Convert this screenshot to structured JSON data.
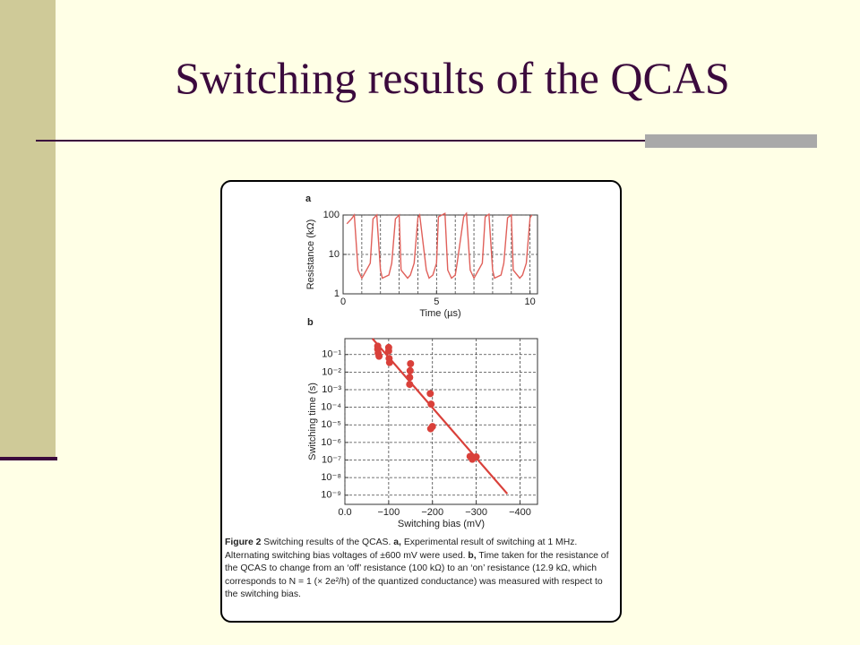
{
  "slide": {
    "title": "Switching results of the QCAS",
    "figure": {
      "panel_a": {
        "label": "a",
        "type": "line",
        "xlabel": "Time (µs)",
        "ylabel": "Resistance (kΩ)",
        "xlim": [
          0,
          10.4
        ],
        "xticks": [
          0,
          5,
          10
        ],
        "xminorticks": [
          1,
          2,
          3,
          4,
          5,
          6,
          7,
          8,
          9,
          10
        ],
        "ylim": [
          1,
          100
        ],
        "yticks": [
          1,
          10,
          100
        ],
        "ygrid": [
          10,
          100
        ],
        "yscale": "log",
        "color": "#E0605A",
        "x": [
          0.2,
          0.45,
          0.6,
          0.8,
          1.0,
          1.1,
          1.45,
          1.6,
          1.8,
          2.0,
          2.1,
          2.45,
          2.6,
          2.8,
          3.0,
          3.1,
          3.45,
          3.6,
          3.8,
          4.0,
          4.1,
          4.45,
          4.6,
          4.8,
          5.0,
          5.1,
          5.45,
          5.6,
          5.8,
          6.0,
          6.1,
          6.45,
          6.6,
          6.8,
          7.0,
          7.1,
          7.45,
          7.6,
          7.8,
          8.0,
          8.1,
          8.45,
          8.6,
          8.8,
          9.0,
          9.1,
          9.45,
          9.6,
          9.8,
          10.0,
          10.1
        ],
        "values": [
          60,
          80,
          100,
          4,
          2.5,
          3,
          6,
          80,
          100,
          4,
          2.5,
          3,
          6,
          80,
          100,
          4,
          2.5,
          3,
          6,
          85,
          100,
          4,
          2.5,
          3,
          6,
          90,
          110,
          4,
          2.5,
          3,
          6,
          90,
          110,
          4,
          2.5,
          3,
          6,
          90,
          105,
          4,
          2.5,
          3,
          6,
          85,
          100,
          4,
          2.5,
          3,
          6,
          85,
          100
        ]
      },
      "panel_b": {
        "label": "b",
        "type": "scatter",
        "xlabel": "Switching bias (mV)",
        "ylabel": "Switching time (s)",
        "xlim": [
          0,
          -440
        ],
        "xticks": [
          {
            "value": 0,
            "label": "0.0"
          },
          {
            "value": -100,
            "label": "−100"
          },
          {
            "value": -200,
            "label": "−200"
          },
          {
            "value": -300,
            "label": "−300"
          },
          {
            "value": -400,
            "label": "−400"
          }
        ],
        "ylim": [
          3e-10,
          0.8
        ],
        "yscale": "log",
        "yticks": [
          {
            "value": 0.1,
            "label": "10⁻¹"
          },
          {
            "value": 0.01,
            "label": "10⁻²"
          },
          {
            "value": 0.001,
            "label": "10⁻³"
          },
          {
            "value": 0.0001,
            "label": "10⁻⁴"
          },
          {
            "value": 1e-05,
            "label": "10⁻⁵"
          },
          {
            "value": 1e-06,
            "label": "10⁻⁶"
          },
          {
            "value": 1e-07,
            "label": "10⁻⁷"
          },
          {
            "value": 1e-08,
            "label": "10⁻⁸"
          },
          {
            "value": 1e-09,
            "label": "10⁻⁹"
          }
        ],
        "grid": true,
        "color": "#D9403A",
        "x": [
          -75,
          -75,
          -76,
          -78,
          -100,
          -100,
          -101,
          -102,
          -150,
          -149,
          -148,
          -148,
          -195,
          -197,
          -200,
          -196,
          -286,
          -291,
          -300
        ],
        "values": [
          0.3,
          0.2,
          0.12,
          0.08,
          0.25,
          0.16,
          0.06,
          0.035,
          0.03,
          0.012,
          0.005,
          0.002,
          0.0006,
          0.00015,
          8e-06,
          6e-06,
          1.6e-07,
          1.1e-07,
          1.5e-07
        ],
        "fit": {
          "x": [
            -63,
            -371
          ],
          "values": [
            0.8,
            1.2e-09
          ]
        }
      },
      "caption": [
        {
          "text": "Figure 2",
          "bold": true
        },
        {
          "text": " Switching results of the QCAS. ",
          "bold": false
        },
        {
          "text": "a,",
          "bold": true
        },
        {
          "text": " Experimental result of switching at 1 MHz. Alternating switching bias voltages of ±600 mV were used. ",
          "bold": false
        },
        {
          "text": "b,",
          "bold": true
        },
        {
          "text": " Time taken for the resistance of the QCAS to change from an ‘off’ resistance (100 kΩ) to an ‘on’ resistance (12.9 kΩ, which corresponds to N = 1 (× 2e²/h) of the quantized conductance) was measured with respect to the switching bias.",
          "bold": false
        }
      ]
    }
  }
}
